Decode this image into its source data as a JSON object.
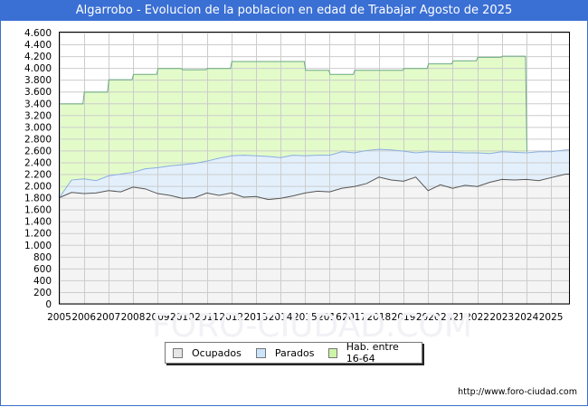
{
  "title": "Algarrobo - Evolucion de la poblacion en edad de Trabajar Agosto de 2025",
  "credit": "http://www.foro-ciudad.com",
  "watermark": "FORO-CIUDAD.COM",
  "legend": [
    {
      "label": "Ocupados",
      "color": "#eeeeee"
    },
    {
      "label": "Parados",
      "color": "#cce4fb"
    },
    {
      "label": "Hab. entre 16-64",
      "color": "#ccf5a8"
    }
  ],
  "colors": {
    "title_bg": "#3a6fd4",
    "hab_fill": "#e3fbc9",
    "hab_line": "#6aaa80",
    "parados_fill": "#e3f0fc",
    "parados_line": "#8aaee0",
    "ocupados_fill": "#f4f4f4",
    "ocupados_line": "#555555",
    "grid": "#cccccc"
  },
  "chart_data": {
    "type": "area",
    "title": "Algarrobo - Evolucion de la poblacion en edad de Trabajar Agosto de 2025",
    "xlabel": "",
    "ylabel": "",
    "ylim": [
      0,
      4600
    ],
    "yticks": [
      0,
      200,
      400,
      600,
      800,
      1000,
      1200,
      1400,
      1600,
      1800,
      2000,
      2200,
      2400,
      2600,
      2800,
      3000,
      3200,
      3400,
      3600,
      3800,
      4000,
      4200,
      4400,
      4600
    ],
    "ytick_labels": [
      "0",
      "200",
      "400",
      "600",
      "800",
      "1.000",
      "1.200",
      "1.400",
      "1.600",
      "1.800",
      "2.000",
      "2.200",
      "2.400",
      "2.600",
      "2.800",
      "3.000",
      "3.200",
      "3.400",
      "3.600",
      "3.800",
      "4.000",
      "4.200",
      "4.400",
      "4.600"
    ],
    "xticks": [
      "2005",
      "2006",
      "2007",
      "2008",
      "2009",
      "2010",
      "2011",
      "2012",
      "2013",
      "2014",
      "2015",
      "2016",
      "2017",
      "2018",
      "2019",
      "2020",
      "2021",
      "2022",
      "2023",
      "2024",
      "2025"
    ],
    "grid": true,
    "legend_position": "bottom",
    "series": [
      {
        "name": "Hab. entre 16-64",
        "x": [
          2005,
          2006,
          2007,
          2008,
          2009,
          2010,
          2011,
          2012,
          2013,
          2014,
          2015,
          2016,
          2017,
          2018,
          2019,
          2020,
          2021,
          2022,
          2023,
          2024
        ],
        "values": [
          3390,
          3590,
          3800,
          3890,
          3990,
          3970,
          3990,
          4110,
          4110,
          4110,
          3960,
          3890,
          3960,
          3960,
          3990,
          4070,
          4120,
          4180,
          4200,
          null
        ]
      },
      {
        "name": "Parados (top line = Ocupados + Parados)",
        "x": [
          2005.0,
          2005.5,
          2006.0,
          2006.5,
          2007.0,
          2007.5,
          2008.0,
          2008.5,
          2009.0,
          2009.5,
          2010.0,
          2010.5,
          2011.0,
          2011.5,
          2012.0,
          2012.5,
          2013.0,
          2013.5,
          2014.0,
          2014.5,
          2015.0,
          2015.5,
          2016.0,
          2016.5,
          2017.0,
          2017.5,
          2018.0,
          2018.5,
          2019.0,
          2019.5,
          2020.0,
          2020.5,
          2021.0,
          2021.5,
          2022.0,
          2022.5,
          2023.0,
          2023.5,
          2024.0,
          2024.5,
          2025.0,
          2025.6
        ],
        "values": [
          1800,
          2100,
          2120,
          2090,
          2170,
          2200,
          2230,
          2290,
          2310,
          2340,
          2360,
          2380,
          2420,
          2470,
          2510,
          2520,
          2510,
          2500,
          2480,
          2520,
          2510,
          2520,
          2520,
          2580,
          2560,
          2600,
          2620,
          2610,
          2590,
          2560,
          2580,
          2570,
          2570,
          2560,
          2560,
          2550,
          2580,
          2570,
          2560,
          2580,
          2580,
          2610
        ]
      },
      {
        "name": "Ocupados",
        "x": [
          2005.0,
          2005.5,
          2006.0,
          2006.5,
          2007.0,
          2007.5,
          2008.0,
          2008.5,
          2009.0,
          2009.5,
          2010.0,
          2010.5,
          2011.0,
          2011.5,
          2012.0,
          2012.5,
          2013.0,
          2013.5,
          2014.0,
          2014.5,
          2015.0,
          2015.5,
          2016.0,
          2016.5,
          2017.0,
          2017.5,
          2018.0,
          2018.5,
          2019.0,
          2019.5,
          2020.0,
          2020.5,
          2021.0,
          2021.5,
          2022.0,
          2022.5,
          2023.0,
          2023.5,
          2024.0,
          2024.5,
          2025.0,
          2025.6
        ],
        "values": [
          1800,
          1890,
          1870,
          1880,
          1920,
          1900,
          1980,
          1950,
          1870,
          1840,
          1790,
          1800,
          1880,
          1840,
          1880,
          1810,
          1820,
          1770,
          1790,
          1830,
          1880,
          1910,
          1900,
          1960,
          1990,
          2040,
          2150,
          2100,
          2080,
          2150,
          1920,
          2020,
          1960,
          2010,
          1990,
          2060,
          2110,
          2100,
          2110,
          2090,
          2140,
          2200
        ]
      }
    ]
  }
}
